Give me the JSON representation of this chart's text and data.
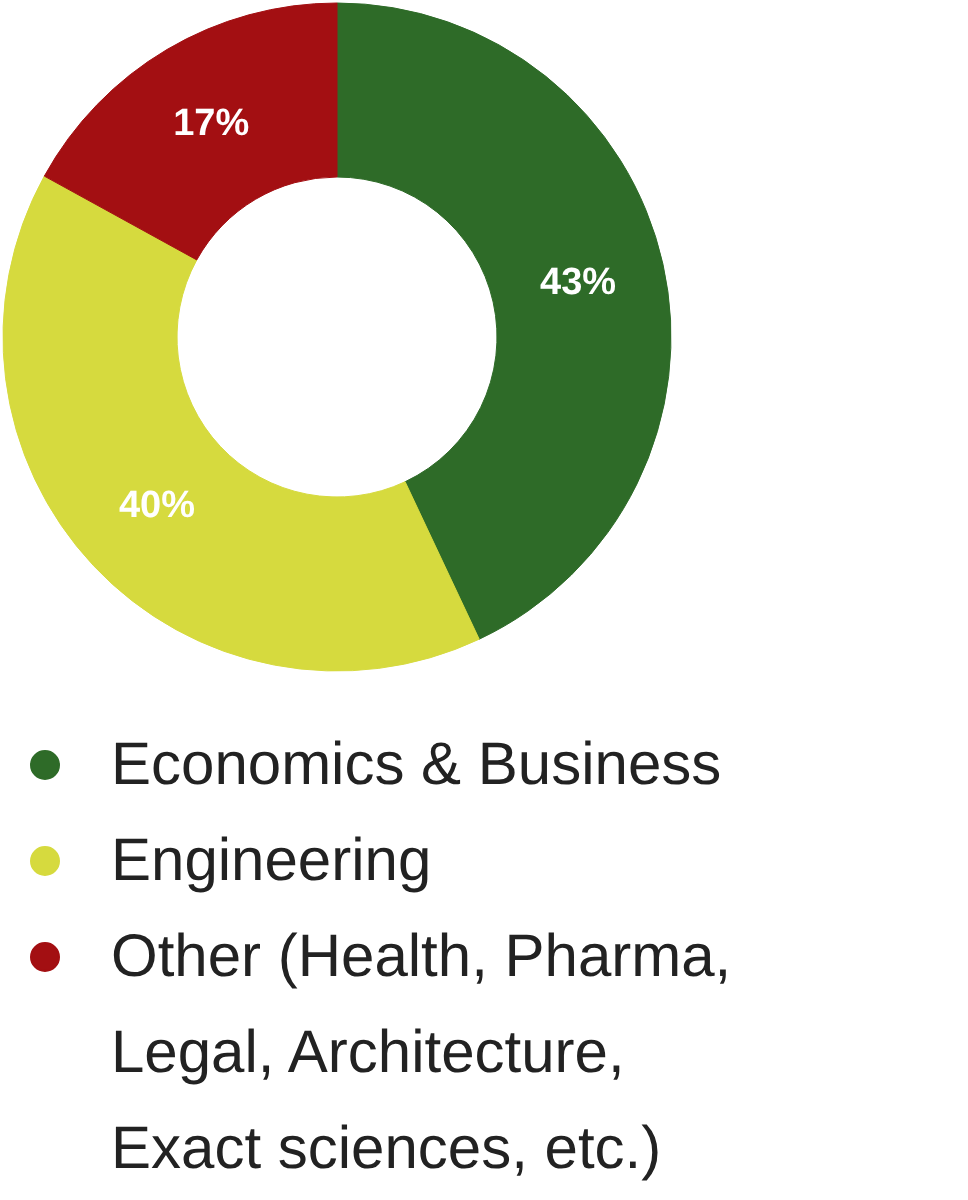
{
  "chart_data": {
    "type": "donut",
    "categories": [
      "Economics & Business",
      "Engineering",
      "Other (Health, Pharma, Legal, Architecture, Exact sciences, etc.)"
    ],
    "values": [
      43,
      40,
      17
    ],
    "colors": [
      "#2e6b28",
      "#d6da3e",
      "#a30f12"
    ],
    "value_labels": [
      "43%",
      "40%",
      "17%"
    ],
    "legend": "bottom"
  }
}
